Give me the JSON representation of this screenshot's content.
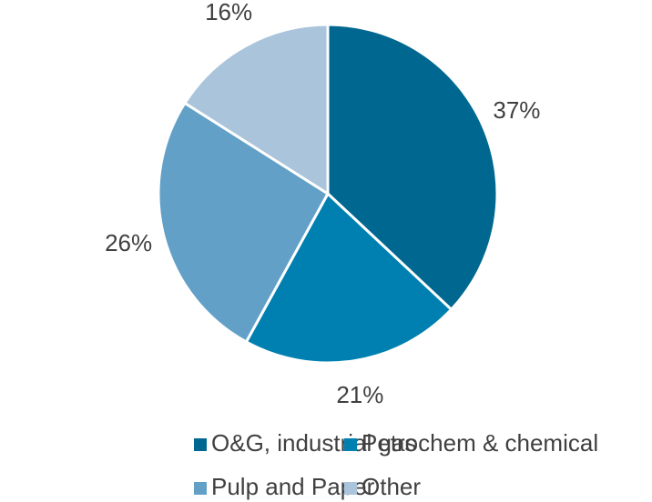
{
  "chart_data": {
    "type": "pie",
    "categories": [
      "O&G, industrial gas",
      "Petrochem & chemical",
      "Pulp and Paper",
      "Other"
    ],
    "values": [
      37,
      21,
      26,
      16
    ],
    "value_labels": [
      "37%",
      "21%",
      "26%",
      "16%"
    ],
    "colors": [
      "#006890",
      "#0080b0",
      "#62a0c8",
      "#aac4dc"
    ],
    "legend": "bottom"
  }
}
